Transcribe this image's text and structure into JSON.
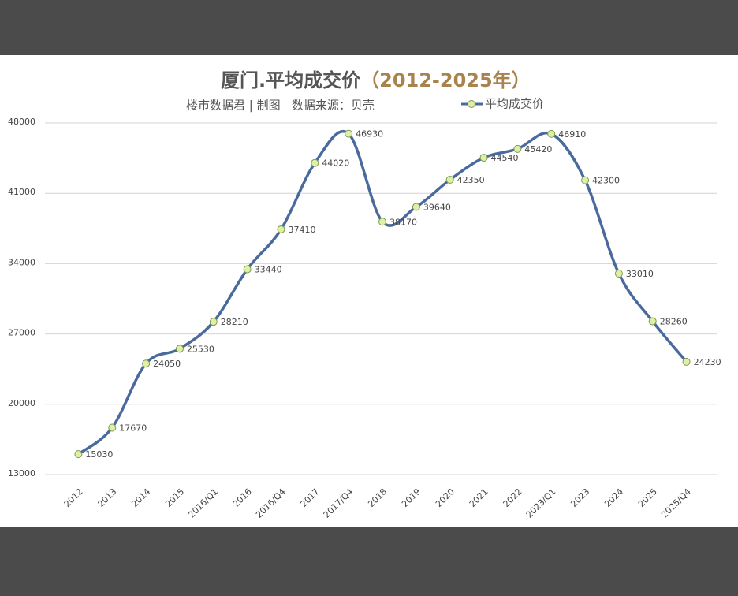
{
  "chart_data": {
    "type": "line",
    "title": [
      "厦门.平均成交价",
      "（2012-2025年）"
    ],
    "subtitle": "楼市数据君 | 制图   数据来源：贝壳",
    "categories": [
      "2012",
      "2013",
      "2014",
      "2015",
      "2016/Q1",
      "2016",
      "2016/Q4",
      "2017",
      "2017/Q4",
      "2018",
      "2019",
      "2020",
      "2021",
      "2022",
      "2023/Q1",
      "2023",
      "2024",
      "2025",
      "2025/Q4"
    ],
    "series": [
      {
        "name": "平均成交价",
        "color": "#4a6a9e",
        "values": [
          15030,
          17670,
          24050,
          25530,
          28210,
          33440,
          37410,
          44020,
          46930,
          38170,
          39640,
          42350,
          44540,
          45420,
          46910,
          42300,
          33010,
          28260,
          24230
        ]
      }
    ],
    "ylim": [
      13000,
      48000
    ],
    "yticks": [
      13000,
      20000,
      27000,
      34000,
      41000,
      48000
    ],
    "grid": true,
    "smooth": true
  }
}
